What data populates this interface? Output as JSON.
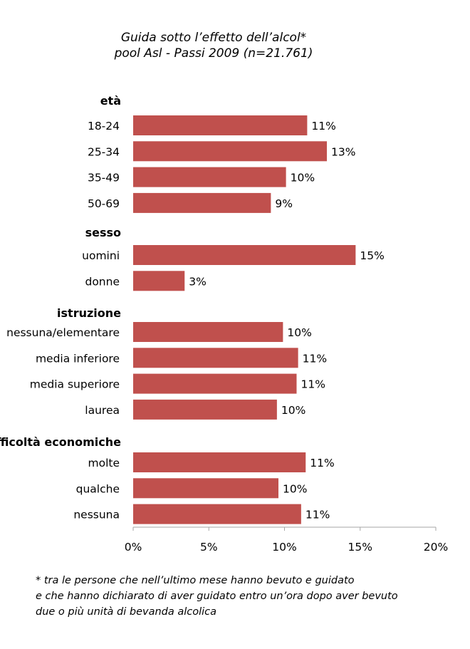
{
  "title_line1": "Guida sotto l’effetto dell’alcol*",
  "title_line2": "pool Asl - Passi 2009 (n=21.761)",
  "chart_data": {
    "type": "bar",
    "orientation": "horizontal",
    "groups": [
      {
        "name": "età",
        "categories": [
          "18-24",
          "25-34",
          "35-49",
          "50-69"
        ],
        "values": [
          11.5,
          12.8,
          10.1,
          9.1
        ],
        "labels": [
          "11%",
          "13%",
          "10%",
          "9%"
        ]
      },
      {
        "name": "sesso",
        "categories": [
          "uomini",
          "donne"
        ],
        "values": [
          14.7,
          3.4
        ],
        "labels": [
          "15%",
          "3%"
        ]
      },
      {
        "name": "istruzione",
        "categories": [
          "nessuna/elementare",
          "media inferiore",
          "media superiore",
          "laurea"
        ],
        "values": [
          9.9,
          10.9,
          10.8,
          9.5
        ],
        "labels": [
          "10%",
          "11%",
          "11%",
          "10%"
        ]
      },
      {
        "name": "difficoltà economiche",
        "categories": [
          "molte",
          "qualche",
          "nessuna"
        ],
        "values": [
          11.4,
          9.6,
          11.1
        ],
        "labels": [
          "11%",
          "10%",
          "11%"
        ]
      }
    ],
    "xlim": [
      0,
      20
    ],
    "xticks": [
      0,
      5,
      10,
      15,
      20
    ],
    "xtick_labels": [
      "0%",
      "5%",
      "10%",
      "15%",
      "20%"
    ],
    "grid": false,
    "bar_color": "#c0504d"
  },
  "footnote_line1": "* tra le persone che nell’ultimo mese hanno bevuto e guidato",
  "footnote_line2": "e che hanno dichiarato di aver guidato entro un’ora dopo aver bevuto",
  "footnote_line3": "due o più unità di bevanda alcolica"
}
